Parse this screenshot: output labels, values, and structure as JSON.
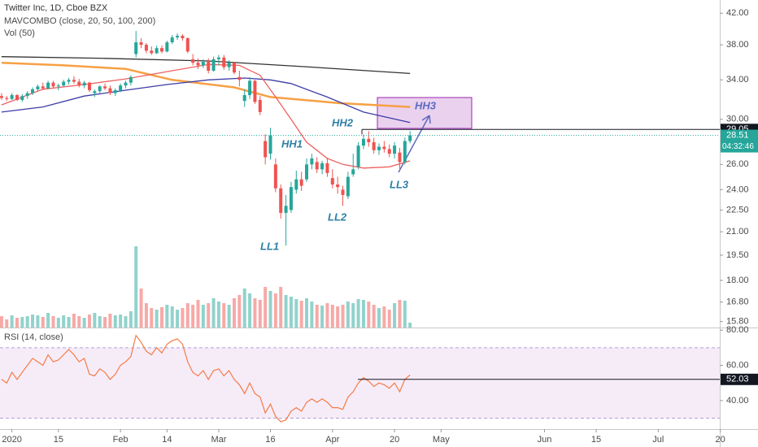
{
  "chart_data": [
    {
      "type": "candlestick",
      "title": "Twitter Inc, 1D, Cboe BZX",
      "indicator": "MAVCOMBO (close, 20, 50, 100, 200)",
      "volume_label": "Vol (50)",
      "xlim": [
        -0.3,
        138.9
      ],
      "xticks": [
        {
          "value": 2,
          "label": "2020"
        },
        {
          "value": 11,
          "label": "15"
        },
        {
          "value": 23,
          "label": "Feb"
        },
        {
          "value": 32,
          "label": "14"
        },
        {
          "value": 42,
          "label": "Mar"
        },
        {
          "value": 52,
          "label": "16"
        },
        {
          "value": 64,
          "label": "Apr"
        },
        {
          "value": 76,
          "label": "20"
        },
        {
          "value": 85,
          "label": "May"
        },
        {
          "value": 105,
          "label": "Jun"
        },
        {
          "value": 115,
          "label": "15"
        },
        {
          "value": 127,
          "label": "Jul"
        },
        {
          "value": 139,
          "label": "20"
        }
      ],
      "log_scale": true,
      "ylim": [
        15.5,
        43.8
      ],
      "yticks": [
        {
          "value": 42,
          "label": "42.00"
        },
        {
          "value": 38,
          "label": "38.00"
        },
        {
          "value": 34,
          "label": "34.00"
        },
        {
          "value": 30,
          "label": "30.00"
        },
        {
          "value": 26,
          "label": "26.00"
        },
        {
          "value": 24,
          "label": "24.00"
        },
        {
          "value": 22.5,
          "label": "22.50"
        },
        {
          "value": 21,
          "label": "21.00"
        },
        {
          "value": 19.5,
          "label": "19.50"
        },
        {
          "value": 18,
          "label": "18.00"
        },
        {
          "value": 16.8,
          "label": "16.80"
        },
        {
          "value": 15.8,
          "label": "15.80"
        }
      ],
      "open": [
        32.3,
        32.1,
        32.0,
        32.4,
        31.9,
        32.3,
        32.6,
        33.0,
        33.3,
        33.1,
        33.7,
        33.3,
        33.4,
        33.8,
        34.0,
        33.8,
        33.4,
        33.7,
        32.6,
        32.8,
        33.3,
        33.1,
        32.6,
        32.9,
        33.4,
        33.7,
        36.9,
        38.3,
        38.0,
        37.3,
        37.0,
        37.6,
        37.2,
        38.3,
        38.9,
        39.1,
        38.8,
        36.3,
        35.9,
        35.6,
        36.0,
        35.0,
        36.3,
        36.5,
        35.4,
        35.9,
        34.3,
        31.8,
        32.4,
        33.9,
        31.9,
        28.0,
        26.9,
        26.0,
        24.1,
        22.3,
        22.5,
        24.0,
        24.8,
        24.8,
        26.0,
        26.2,
        25.6,
        26.1,
        24.9,
        24.4,
        24.0,
        23.5,
        25.2,
        25.8,
        27.6,
        28.2,
        27.9,
        27.2,
        27.5,
        27.3,
        26.9,
        27.0,
        26.2,
        28.0
      ],
      "high": [
        32.6,
        32.3,
        32.6,
        32.5,
        32.5,
        32.8,
        33.2,
        33.5,
        33.7,
        33.9,
        33.9,
        33.6,
        34.0,
        34.2,
        34.4,
        34.1,
        33.9,
        33.8,
        33.0,
        33.4,
        33.6,
        33.4,
        33.1,
        33.6,
        33.9,
        34.5,
        39.7,
        38.8,
        38.2,
        37.8,
        37.9,
        37.9,
        38.5,
        39.2,
        39.4,
        39.3,
        38.9,
        36.9,
        36.4,
        36.3,
        36.4,
        36.6,
        36.8,
        36.8,
        36.2,
        36.0,
        35.0,
        33.0,
        34.3,
        34.0,
        32.3,
        28.6,
        29.2,
        26.5,
        24.4,
        23.6,
        24.6,
        25.5,
        25.4,
        26.5,
        26.9,
        26.6,
        26.3,
        26.5,
        25.6,
        25.0,
        24.3,
        25.4,
        26.9,
        27.9,
        28.6,
        28.9,
        28.3,
        27.8,
        28.0,
        27.7,
        27.9,
        27.4,
        28.3,
        28.9
      ],
      "low": [
        31.9,
        31.8,
        31.9,
        31.8,
        31.7,
        32.0,
        32.4,
        32.8,
        32.9,
        33.0,
        33.1,
        32.9,
        33.2,
        33.5,
        33.6,
        33.2,
        33.1,
        32.7,
        32.2,
        32.6,
        32.9,
        32.4,
        32.3,
        32.7,
        33.1,
        33.4,
        36.5,
        37.6,
        37.0,
        36.8,
        36.9,
        37.0,
        37.1,
        38.1,
        38.6,
        38.5,
        37.0,
        35.6,
        35.2,
        35.3,
        34.7,
        34.9,
        35.6,
        35.1,
        35.0,
        34.6,
        33.3,
        31.2,
        32.0,
        31.5,
        30.4,
        26.0,
        26.4,
        23.8,
        21.9,
        20.1,
        22.3,
        23.7,
        23.9,
        24.6,
        25.6,
        25.3,
        25.2,
        25.0,
        24.1,
        23.7,
        22.8,
        23.3,
        25.0,
        25.6,
        27.3,
        27.5,
        26.9,
        26.8,
        27.0,
        26.6,
        26.5,
        25.5,
        26.0,
        27.8
      ],
      "close": [
        32.1,
        32.0,
        32.4,
        31.9,
        32.3,
        32.6,
        33.0,
        33.3,
        33.1,
        33.7,
        33.3,
        33.4,
        33.8,
        34.0,
        33.8,
        33.4,
        33.7,
        32.9,
        32.8,
        33.3,
        33.1,
        32.6,
        32.9,
        33.4,
        33.7,
        34.3,
        38.3,
        38.0,
        37.3,
        37.0,
        37.6,
        37.2,
        38.3,
        38.9,
        39.1,
        38.8,
        37.2,
        35.9,
        35.6,
        36.0,
        35.0,
        36.3,
        36.5,
        35.4,
        35.9,
        34.8,
        34.0,
        32.4,
        33.9,
        31.7,
        30.7,
        26.6,
        28.5,
        24.1,
        22.3,
        22.8,
        24.2,
        24.8,
        24.3,
        26.0,
        26.5,
        25.6,
        26.1,
        25.3,
        24.4,
        24.2,
        23.6,
        25.0,
        25.6,
        27.6,
        28.2,
        27.9,
        27.2,
        27.5,
        27.3,
        26.9,
        27.6,
        26.2,
        28.0,
        28.51
      ],
      "volume": [
        14,
        10,
        15,
        12,
        13,
        14,
        16,
        15,
        13,
        18,
        14,
        12,
        15,
        13,
        17,
        14,
        12,
        16,
        18,
        14,
        13,
        17,
        15,
        16,
        14,
        20,
        100,
        48,
        30,
        24,
        22,
        25,
        28,
        26,
        22,
        24,
        30,
        28,
        34,
        28,
        30,
        36,
        32,
        30,
        28,
        36,
        40,
        48,
        42,
        36,
        34,
        50,
        45,
        42,
        50,
        40,
        38,
        35,
        33,
        36,
        32,
        28,
        27,
        30,
        28,
        26,
        28,
        32,
        30,
        35,
        34,
        32,
        28,
        24,
        26,
        22,
        30,
        34,
        33,
        6
      ],
      "volume_lim": [
        0,
        110
      ],
      "up_color": "#26a69a",
      "down_color": "#ef5350",
      "series": [
        {
          "color": "#333333",
          "x": [
            0,
            20,
            40,
            60,
            79
          ],
          "values": [
            36.6,
            36.4,
            36.1,
            35.4,
            34.7
          ]
        },
        {
          "color": "#f7a044",
          "x": [
            0,
            12,
            24,
            33,
            45,
            52,
            65,
            79
          ],
          "values": [
            35.9,
            35.6,
            35.2,
            34.0,
            33.2,
            32.2,
            31.6,
            31.2
          ]
        },
        {
          "color": "#3c3ca6",
          "x": [
            0,
            8,
            16,
            24,
            32,
            40,
            47,
            52,
            56,
            63,
            70,
            79
          ],
          "values": [
            30.7,
            31.2,
            32.3,
            32.9,
            33.5,
            34.0,
            34.2,
            34.0,
            33.6,
            32.2,
            30.7,
            29.7
          ]
        },
        {
          "color": "#f06060",
          "x": [
            0,
            8,
            16,
            24,
            32,
            40,
            46,
            50,
            53,
            56,
            59,
            63,
            66,
            70,
            75,
            79
          ],
          "values": [
            31.4,
            33.0,
            33.5,
            34.1,
            34.9,
            35.7,
            35.6,
            34.5,
            32.2,
            30.0,
            27.9,
            26.5,
            26.0,
            25.7,
            25.8,
            26.3
          ]
        }
      ],
      "level": 29.05,
      "time_left": "04:32:46",
      "annotations": [
        "HH1",
        "HH2",
        "HH3",
        "LL1",
        "LL2",
        "LL3"
      ]
    },
    {
      "type": "line",
      "title": "RSI (14, close)",
      "ylim": [
        23.8,
        81
      ],
      "yticks": [
        {
          "value": 80,
          "label": "80.00"
        },
        {
          "value": 60,
          "label": "60.00"
        },
        {
          "value": 40,
          "label": "40.00"
        }
      ],
      "band": [
        30,
        70
      ],
      "color": "#f47b45",
      "values": [
        52,
        50,
        56,
        52,
        56,
        60,
        64,
        62,
        60,
        66,
        62,
        63,
        66,
        69,
        66,
        62,
        64,
        55,
        54,
        58,
        56,
        52,
        55,
        60,
        62,
        65,
        77,
        73,
        68,
        66,
        70,
        67,
        72,
        74,
        75,
        72,
        62,
        56,
        54,
        57,
        52,
        57,
        58,
        54,
        57,
        52,
        49,
        44,
        50,
        44,
        42,
        33,
        38,
        31,
        28,
        29,
        34,
        36,
        34,
        39,
        41,
        39,
        41,
        39,
        36,
        36,
        35,
        42,
        45,
        50,
        53,
        51,
        48,
        50,
        49,
        47,
        50,
        45,
        52,
        54.6
      ],
      "level": 52.03
    }
  ]
}
